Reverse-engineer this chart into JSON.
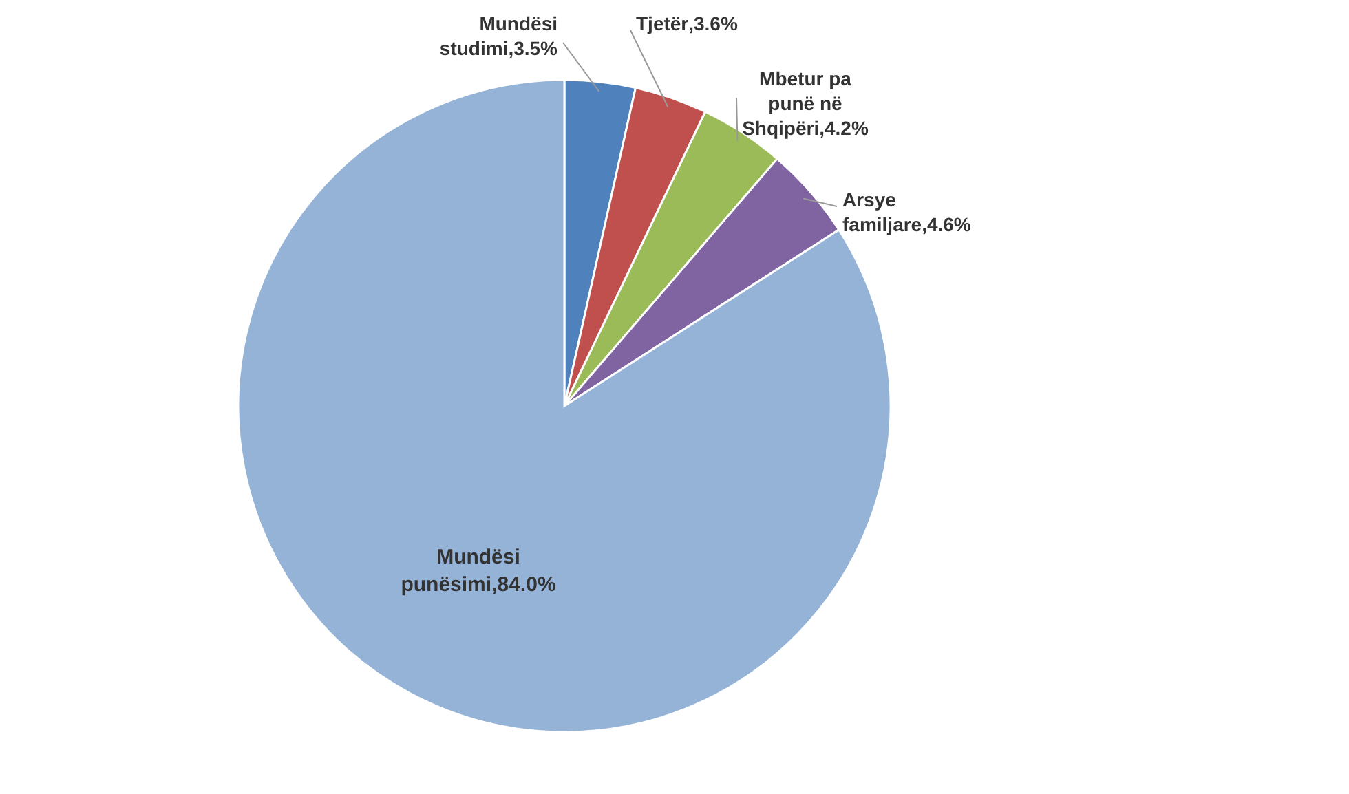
{
  "chart_data": {
    "type": "pie",
    "categories": [
      "Mundësi studimi",
      "Tjetër",
      "Mbetur pa punë në Shqipëri",
      "Arsye familjare",
      "Mundësi punësimi"
    ],
    "values": [
      3.5,
      3.6,
      4.2,
      4.6,
      84.0
    ],
    "colors": [
      "#4f81bd",
      "#c0504d",
      "#9bbb59",
      "#8064a2",
      "#95b3d7"
    ],
    "value_labels": [
      ",3.5%",
      ",3.6%",
      ",4.2%",
      ",4.6%",
      ",84.0%"
    ]
  }
}
